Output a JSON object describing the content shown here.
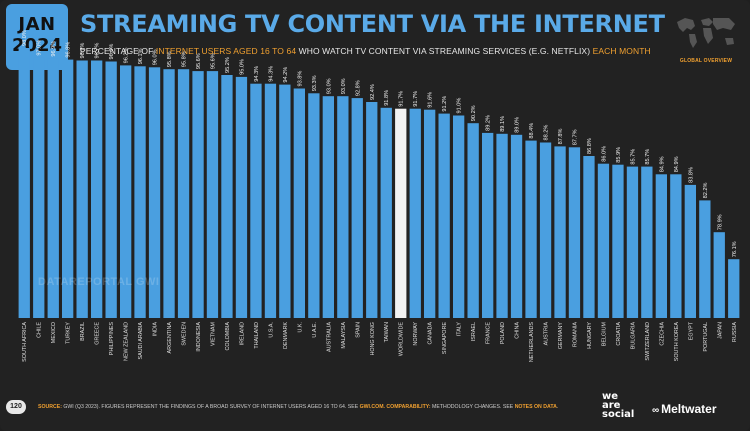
{
  "header": {
    "badge_month": "JAN",
    "badge_year": "2024",
    "title": "STREAMING TV CONTENT VIA THE INTERNET",
    "subtitle_pre": "PERCENTAGE OF ",
    "subtitle_hl1": "INTERNET USERS AGED 16 TO 64",
    "subtitle_mid": " WHO WATCH TV CONTENT VIA STREAMING SERVICES (E.G. NETFLIX) ",
    "subtitle_hl2": "EACH MONTH",
    "global_overview": "GLOBAL OVERVIEW"
  },
  "colors": {
    "background": "#222222",
    "bar": "#4a9fe0",
    "highlight_bar": "#f2f2f2",
    "accent": "#f0a030"
  },
  "chart_data": {
    "type": "bar",
    "categories": [
      "SOUTH AFRICA",
      "CHILE",
      "MEXICO",
      "TURKEY",
      "BRAZIL",
      "GREECE",
      "PHILIPPINES",
      "NEW ZEALAND",
      "SAUDI ARABIA",
      "INDIA",
      "ARGENTINA",
      "SWEDEN",
      "INDONESIA",
      "VIETNAM",
      "COLOMBIA",
      "IRELAND",
      "THAILAND",
      "U.S.A.",
      "DENMARK",
      "U.K.",
      "U.A.E.",
      "AUSTRALIA",
      "MALAYSIA",
      "SPAIN",
      "HONG KONG",
      "TAIWAN",
      "WORLDWIDE",
      "NORWAY",
      "CANADA",
      "SINGAPORE",
      "ITALY",
      "ISRAEL",
      "FRANCE",
      "POLAND",
      "CHINA",
      "NETHERLANDS",
      "AUSTRIA",
      "GERMANY",
      "ROMANIA",
      "HUNGARY",
      "BELGIUM",
      "CROATIA",
      "BULGARIA",
      "SWITZERLAND",
      "CZECHIA",
      "SOUTH KOREA",
      "EGYPT",
      "PORTUGAL",
      "JAPAN",
      "RUSSIA"
    ],
    "values": [
      98.0,
      97.0,
      96.9,
      96.8,
      96.7,
      96.7,
      96.6,
      96.2,
      96.1,
      96.0,
      95.8,
      95.8,
      95.6,
      95.6,
      95.2,
      95.0,
      94.3,
      94.3,
      94.2,
      93.8,
      93.3,
      93.0,
      93.0,
      92.8,
      92.4,
      91.8,
      91.7,
      91.7,
      91.6,
      91.2,
      91.0,
      90.2,
      89.2,
      89.1,
      89.0,
      88.4,
      88.2,
      87.8,
      87.7,
      86.8,
      86.0,
      85.9,
      85.7,
      85.7,
      84.9,
      84.9,
      83.8,
      82.2,
      78.9,
      76.1
    ],
    "labels": [
      "98.0%",
      "97.0%",
      "96.9%",
      "96.8%",
      "96.7%",
      "96.7%",
      "96.6%",
      "96.2%",
      "96.1%",
      "96.0%",
      "95.8%",
      "95.8%",
      "95.6%",
      "95.6%",
      "95.2%",
      "95.0%",
      "94.3%",
      "94.3%",
      "94.2%",
      "93.8%",
      "93.3%",
      "93.0%",
      "93.0%",
      "92.8%",
      "92.4%",
      "91.8%",
      "91.7%",
      "91.7%",
      "91.6%",
      "91.2%",
      "91.0%",
      "90.2%",
      "89.2%",
      "89.1%",
      "89.0%",
      "88.4%",
      "88.2%",
      "87.8%",
      "87.7%",
      "86.8%",
      "86.0%",
      "85.9%",
      "85.7%",
      "85.7%",
      "84.9%",
      "84.9%",
      "83.8%",
      "82.2%",
      "78.9%",
      "76.1%"
    ],
    "highlight": "WORLDWIDE",
    "ylim": [
      0,
      100
    ]
  },
  "watermark": "DATAREPORTAL  GWI",
  "footer": {
    "source_label": "SOURCE:",
    "source_text": " GWI (Q3 2023). FIGURES REPRESENT THE FINDINGS OF A BROAD SURVEY OF INTERNET USERS AGED 16 TO 64. SEE ",
    "source_link": "GWI.COM",
    "comp_label": ". COMPARABILITY:",
    "comp_text": " METHODOLOGY CHANGES. SEE ",
    "comp_link": "NOTES ON DATA",
    "end": "."
  },
  "page_number": "120",
  "brand1": [
    "we",
    "are",
    "social"
  ],
  "brand2": "Meltwater"
}
